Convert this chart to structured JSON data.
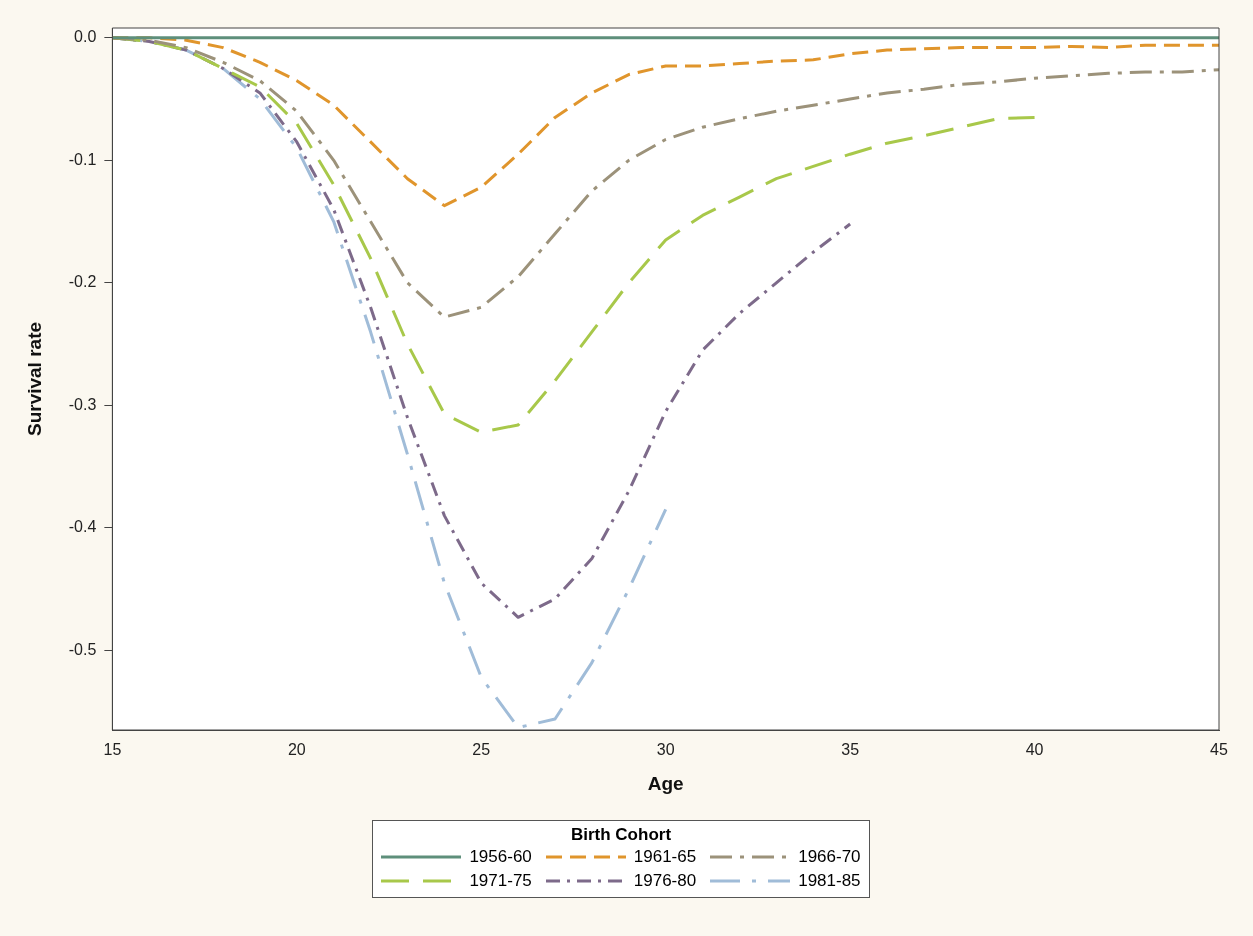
{
  "chart_data": {
    "type": "line",
    "xlabel": "Age",
    "ylabel": "Survival rate",
    "legend_title": "Birth Cohort",
    "legend": "bottom",
    "grid": false,
    "marker": "none",
    "x": [
      15,
      16,
      17,
      18,
      19,
      20,
      21,
      22,
      23,
      24,
      25,
      26,
      27,
      28,
      29,
      30,
      31,
      32,
      33,
      34,
      35,
      36,
      37,
      38,
      39,
      40,
      41,
      42,
      43,
      44,
      45
    ],
    "xlim": [
      15,
      45
    ],
    "xticks": [
      15,
      20,
      25,
      30,
      35,
      40,
      45
    ],
    "ylim": [
      -0.565,
      0.008
    ],
    "yticks": [
      {
        "value": 0,
        "label": "0.0"
      },
      -0.1,
      -0.2,
      -0.3,
      -0.4,
      -0.5
    ],
    "series": [
      {
        "name": "1956-60",
        "color": "#5e8f7b",
        "line_style": "solid",
        "values": [
          0,
          0,
          0,
          0,
          0,
          0,
          0,
          0,
          0,
          0,
          0,
          0,
          0,
          0,
          0,
          0,
          0,
          0,
          0,
          0,
          0,
          0,
          0,
          0,
          0,
          0,
          0,
          0,
          0,
          0,
          0
        ]
      },
      {
        "name": "1961-65",
        "color": "#e0952c",
        "line_style": "dashed",
        "values": [
          0,
          0,
          -0.002,
          -0.008,
          -0.02,
          -0.035,
          -0.055,
          -0.085,
          -0.115,
          -0.137,
          -0.122,
          -0.095,
          -0.065,
          -0.045,
          -0.03,
          -0.023,
          -0.023,
          -0.021,
          -0.019,
          -0.018,
          -0.013,
          -0.01,
          -0.009,
          -0.008,
          -0.008,
          -0.008,
          -0.007,
          -0.008,
          -0.006,
          -0.006,
          -0.006
        ]
      },
      {
        "name": "1966-70",
        "color": "#9c927a",
        "line_style": "dashed",
        "values": [
          0,
          -0.002,
          -0.008,
          -0.02,
          -0.035,
          -0.06,
          -0.1,
          -0.15,
          -0.2,
          -0.228,
          -0.22,
          -0.195,
          -0.16,
          -0.125,
          -0.1,
          -0.083,
          -0.073,
          -0.066,
          -0.06,
          -0.055,
          -0.05,
          -0.045,
          -0.042,
          -0.038,
          -0.036,
          -0.033,
          -0.031,
          -0.029,
          -0.028,
          -0.028,
          -0.026
        ]
      },
      {
        "name": "1971-75",
        "color": "#a8c84a",
        "line_style": "dashed",
        "values": [
          0,
          -0.003,
          -0.01,
          -0.025,
          -0.04,
          -0.07,
          -0.12,
          -0.18,
          -0.25,
          -0.307,
          -0.322,
          -0.316,
          -0.28,
          -0.24,
          -0.2,
          -0.165,
          -0.145,
          -0.13,
          -0.115,
          -0.105,
          -0.095,
          -0.086,
          -0.08,
          -0.073,
          -0.066,
          -0.065,
          null,
          null,
          null,
          null,
          null
        ]
      },
      {
        "name": "1976-80",
        "color": "#7d6a8a",
        "line_style": "dashed",
        "values": [
          0,
          -0.003,
          -0.01,
          -0.025,
          -0.045,
          -0.085,
          -0.14,
          -0.22,
          -0.31,
          -0.39,
          -0.445,
          -0.473,
          -0.458,
          -0.425,
          -0.37,
          -0.305,
          -0.255,
          -0.225,
          -0.2,
          -0.175,
          -0.152,
          null,
          null,
          null,
          null,
          null,
          null,
          null,
          null,
          null,
          null
        ]
      },
      {
        "name": "1981-85",
        "color": "#a0bcd8",
        "line_style": "dashed",
        "values": [
          0,
          -0.003,
          -0.01,
          -0.025,
          -0.05,
          -0.09,
          -0.15,
          -0.24,
          -0.34,
          -0.445,
          -0.522,
          -0.563,
          -0.556,
          -0.51,
          -0.45,
          -0.385,
          null,
          null,
          null,
          null,
          null,
          null,
          null,
          null,
          null,
          null,
          null,
          null,
          null,
          null,
          null
        ]
      }
    ]
  }
}
